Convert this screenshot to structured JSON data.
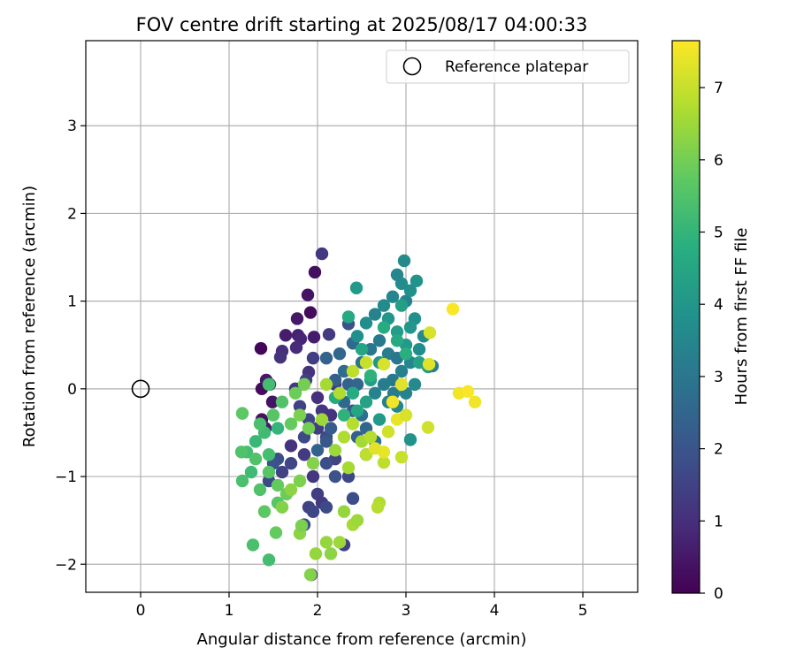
{
  "chart_data": {
    "type": "scatter",
    "title": "FOV centre drift starting at 2025/08/17 04:00:33",
    "xlabel": "Angular distance from reference (arcmin)",
    "ylabel": "Rotation from reference (arcmin)",
    "xlim": [
      -0.62,
      5.62
    ],
    "ylim": [
      -2.32,
      3.97
    ],
    "xticks": [
      0,
      1,
      2,
      3,
      4,
      5
    ],
    "yticks": [
      -2,
      -1,
      0,
      1,
      2,
      3
    ],
    "grid": true,
    "legend": {
      "placement": "top-right",
      "entries": [
        "Reference platepar"
      ]
    },
    "reference_point": {
      "label": "Reference platepar",
      "x": 0,
      "y": 0,
      "marker": "open-circle"
    },
    "colorbar": {
      "label": "Hours from first FF file",
      "colormap": "viridis",
      "range": [
        0,
        7.65
      ],
      "ticks": [
        0,
        1,
        2,
        3,
        4,
        5,
        6,
        7
      ]
    },
    "points_format": [
      "x_arcmin",
      "y_arcmin",
      "hours"
    ],
    "points": [
      [
        1.36,
        0.46,
        0.1
      ],
      [
        1.92,
        0.87,
        0.2
      ],
      [
        1.97,
        1.33,
        0.3
      ],
      [
        1.89,
        1.07,
        0.4
      ],
      [
        1.77,
        0.8,
        0.5
      ],
      [
        1.64,
        0.61,
        0.6
      ],
      [
        1.78,
        0.61,
        0.7
      ],
      [
        1.81,
        0.57,
        0.8
      ],
      [
        1.96,
        0.59,
        0.6
      ],
      [
        1.76,
        0.47,
        0.9
      ],
      [
        1.37,
        0.0,
        0.2
      ],
      [
        1.42,
        0.1,
        0.5
      ],
      [
        1.46,
        0.05,
        0.8
      ],
      [
        1.49,
        -0.15,
        0.4
      ],
      [
        1.37,
        -0.35,
        0.3
      ],
      [
        1.41,
        -0.45,
        0.6
      ],
      [
        1.6,
        0.43,
        1.0
      ],
      [
        1.58,
        0.36,
        1.1
      ],
      [
        2.05,
        1.54,
        1.2
      ],
      [
        2.13,
        0.62,
        1.3
      ],
      [
        1.9,
        0.19,
        1.1
      ],
      [
        1.87,
        0.1,
        1.4
      ],
      [
        1.75,
        0.0,
        1.2
      ],
      [
        1.8,
        -0.2,
        1.5
      ],
      [
        1.9,
        -0.35,
        1.6
      ],
      [
        2.0,
        -0.45,
        1.4
      ],
      [
        2.1,
        -0.55,
        1.7
      ],
      [
        1.85,
        -0.75,
        1.3
      ],
      [
        1.7,
        -0.85,
        1.6
      ],
      [
        1.6,
        -0.95,
        1.5
      ],
      [
        1.55,
        -0.8,
        1.8
      ],
      [
        1.5,
        -0.85,
        1.9
      ],
      [
        1.45,
        -1.05,
        1.7
      ],
      [
        1.95,
        -1.0,
        1.2
      ],
      [
        2.0,
        -1.2,
        1.4
      ],
      [
        2.05,
        -1.3,
        1.3
      ],
      [
        1.9,
        -1.35,
        1.5
      ],
      [
        1.85,
        -1.55,
        1.8
      ],
      [
        1.95,
        -1.4,
        1.6
      ],
      [
        2.1,
        -1.35,
        1.7
      ],
      [
        2.2,
        -1.0,
        1.9
      ],
      [
        2.2,
        -0.8,
        1.5
      ],
      [
        2.35,
        -1.0,
        1.6
      ],
      [
        2.4,
        -1.25,
        1.8
      ],
      [
        2.3,
        -1.78,
        1.5
      ],
      [
        1.93,
        -2.12,
        0.9
      ],
      [
        2.0,
        -0.1,
        1.0
      ],
      [
        2.05,
        -0.25,
        1.2
      ],
      [
        2.15,
        -0.3,
        1.1
      ],
      [
        2.2,
        0.05,
        1.3
      ],
      [
        1.95,
        0.35,
        1.4
      ],
      [
        2.35,
        0.74,
        1.9
      ],
      [
        2.1,
        -0.85,
        1.8
      ],
      [
        1.85,
        -0.55,
        1.7
      ],
      [
        1.7,
        -0.65,
        1.1
      ],
      [
        2.1,
        0.35,
        2.4
      ],
      [
        2.25,
        0.4,
        2.5
      ],
      [
        2.4,
        0.52,
        2.6
      ],
      [
        2.2,
        0.1,
        2.3
      ],
      [
        2.3,
        0.2,
        2.7
      ],
      [
        2.35,
        0.05,
        2.4
      ],
      [
        2.45,
        0.05,
        2.5
      ],
      [
        2.3,
        -0.15,
        2.6
      ],
      [
        2.4,
        -0.25,
        2.2
      ],
      [
        2.5,
        -0.3,
        2.8
      ],
      [
        2.55,
        -0.45,
        2.5
      ],
      [
        2.65,
        -0.6,
        2.9
      ],
      [
        2.55,
        -0.75,
        2.4
      ],
      [
        2.45,
        -0.55,
        2.3
      ],
      [
        2.15,
        -0.45,
        2.2
      ],
      [
        2.1,
        -0.6,
        2.1
      ],
      [
        2.0,
        -0.7,
        2.4
      ],
      [
        2.5,
        0.3,
        2.9
      ],
      [
        2.6,
        0.45,
        3.0
      ],
      [
        2.7,
        0.55,
        3.1
      ],
      [
        2.8,
        0.4,
        3.2
      ],
      [
        2.9,
        0.35,
        3.0
      ],
      [
        2.95,
        0.2,
        3.3
      ],
      [
        2.85,
        0.1,
        3.1
      ],
      [
        2.75,
        0.05,
        3.2
      ],
      [
        2.65,
        -0.05,
        3.4
      ],
      [
        2.8,
        -0.15,
        3.3
      ],
      [
        2.9,
        -0.2,
        3.5
      ],
      [
        3.0,
        -0.05,
        3.4
      ],
      [
        3.1,
        0.05,
        3.6
      ],
      [
        3.05,
        0.3,
        3.5
      ],
      [
        3.15,
        0.45,
        3.7
      ],
      [
        3.2,
        0.6,
        3.6
      ],
      [
        3.1,
        0.8,
        3.8
      ],
      [
        3.0,
        1.0,
        3.4
      ],
      [
        2.95,
        1.2,
        3.7
      ],
      [
        2.9,
        1.3,
        3.5
      ],
      [
        2.98,
        1.46,
        3.6
      ],
      [
        3.12,
        1.23,
        3.9
      ],
      [
        3.05,
        1.12,
        3.8
      ],
      [
        2.85,
        1.05,
        3.5
      ],
      [
        2.75,
        0.95,
        3.6
      ],
      [
        2.65,
        0.85,
        3.4
      ],
      [
        2.55,
        0.75,
        3.7
      ],
      [
        2.45,
        0.6,
        3.8
      ],
      [
        2.44,
        1.15,
        4.1
      ],
      [
        2.8,
        0.8,
        4.0
      ],
      [
        2.9,
        0.65,
        4.2
      ],
      [
        3.0,
        0.5,
        4.1
      ],
      [
        2.95,
        0.95,
        4.3
      ],
      [
        3.05,
        0.7,
        4.0
      ],
      [
        3.15,
        0.3,
        4.4
      ],
      [
        3.25,
        0.25,
        4.2
      ],
      [
        2.7,
        0.3,
        4.0
      ],
      [
        2.6,
        0.1,
        4.3
      ],
      [
        2.7,
        -0.35,
        4.1
      ],
      [
        2.55,
        -0.15,
        4.4
      ],
      [
        3.05,
        -0.58,
        3.9
      ],
      [
        3.3,
        0.26,
        3.3
      ],
      [
        2.86,
        -0.05,
        3.2
      ],
      [
        2.35,
        0.82,
        4.6
      ],
      [
        2.5,
        0.45,
        4.5
      ],
      [
        2.75,
        0.7,
        4.7
      ],
      [
        2.9,
        0.55,
        4.6
      ],
      [
        3.0,
        0.4,
        4.8
      ],
      [
        2.6,
        0.15,
        4.9
      ],
      [
        2.4,
        -0.05,
        4.7
      ],
      [
        2.45,
        -0.25,
        4.5
      ],
      [
        2.2,
        -0.1,
        4.6
      ],
      [
        2.3,
        -0.3,
        4.9
      ],
      [
        1.55,
        -0.45,
        5.0
      ],
      [
        1.4,
        -0.5,
        5.2
      ],
      [
        1.3,
        -0.6,
        5.1
      ],
      [
        1.45,
        -0.75,
        5.3
      ],
      [
        1.25,
        -0.95,
        5.2
      ],
      [
        1.15,
        -1.05,
        5.4
      ],
      [
        1.2,
        -0.72,
        5.3
      ],
      [
        1.3,
        -0.8,
        5.5
      ],
      [
        1.45,
        -0.95,
        5.6
      ],
      [
        1.35,
        -1.15,
        5.5
      ],
      [
        1.4,
        -1.4,
        5.7
      ],
      [
        1.55,
        -1.3,
        5.6
      ],
      [
        1.53,
        -1.64,
        5.8
      ],
      [
        1.27,
        -1.78,
        5.4
      ],
      [
        1.45,
        -1.95,
        5.3
      ],
      [
        1.35,
        -0.4,
        5.4
      ],
      [
        1.5,
        -0.3,
        5.6
      ],
      [
        1.6,
        -0.15,
        5.5
      ],
      [
        1.45,
        0.05,
        5.3
      ],
      [
        1.15,
        -0.28,
        5.7
      ],
      [
        1.14,
        -0.72,
        5.5
      ],
      [
        1.55,
        -1.1,
        5.8
      ],
      [
        1.65,
        -1.2,
        5.9
      ],
      [
        1.7,
        -0.4,
        5.8
      ],
      [
        1.75,
        -0.05,
        5.9
      ],
      [
        1.85,
        0.05,
        6.0
      ],
      [
        1.8,
        -0.3,
        6.1
      ],
      [
        1.9,
        -0.45,
        6.0
      ],
      [
        1.95,
        -0.85,
        6.2
      ],
      [
        1.8,
        -1.05,
        6.1
      ],
      [
        1.7,
        -1.15,
        6.3
      ],
      [
        1.6,
        -1.35,
        6.2
      ],
      [
        1.8,
        -1.65,
        6.3
      ],
      [
        1.82,
        -1.56,
        6.1
      ],
      [
        1.98,
        -1.88,
        6.4
      ],
      [
        1.92,
        -2.12,
        6.2
      ],
      [
        2.1,
        -1.75,
        6.4
      ],
      [
        2.15,
        -1.88,
        6.3
      ],
      [
        2.25,
        -1.75,
        6.5
      ],
      [
        2.4,
        -1.55,
        6.6
      ],
      [
        2.3,
        -1.4,
        6.4
      ],
      [
        2.45,
        -1.5,
        6.5
      ],
      [
        2.7,
        -1.3,
        6.7
      ],
      [
        2.68,
        -1.35,
        6.8
      ],
      [
        2.35,
        -0.9,
        6.6
      ],
      [
        2.2,
        -0.7,
        6.5
      ],
      [
        2.3,
        -0.55,
        6.7
      ],
      [
        2.4,
        -0.4,
        6.8
      ],
      [
        2.5,
        -0.6,
        6.6
      ],
      [
        2.55,
        -0.75,
        6.9
      ],
      [
        2.6,
        -0.55,
        6.8
      ],
      [
        2.4,
        0.2,
        6.9
      ],
      [
        2.55,
        0.3,
        7.0
      ],
      [
        2.75,
        0.28,
        7.2
      ],
      [
        2.8,
        -0.49,
        7.1
      ],
      [
        2.95,
        -0.78,
        7.0
      ],
      [
        2.75,
        -0.84,
        6.9
      ],
      [
        2.25,
        -0.05,
        6.7
      ],
      [
        2.1,
        0.05,
        6.6
      ],
      [
        2.05,
        -0.35,
        6.5
      ],
      [
        3.25,
        -0.44,
        7.1
      ],
      [
        3.26,
        0.28,
        7.3
      ],
      [
        3.27,
        0.64,
        7.2
      ],
      [
        3.53,
        0.91,
        7.6
      ],
      [
        3.6,
        -0.05,
        7.5
      ],
      [
        3.7,
        -0.03,
        7.6
      ],
      [
        3.78,
        -0.15,
        7.5
      ],
      [
        2.9,
        -0.35,
        7.4
      ],
      [
        2.95,
        0.05,
        7.3
      ],
      [
        3.0,
        -0.3,
        7.2
      ],
      [
        2.85,
        -0.15,
        7.5
      ],
      [
        2.75,
        -0.72,
        7.4
      ],
      [
        2.65,
        -0.68,
        7.3
      ]
    ]
  }
}
